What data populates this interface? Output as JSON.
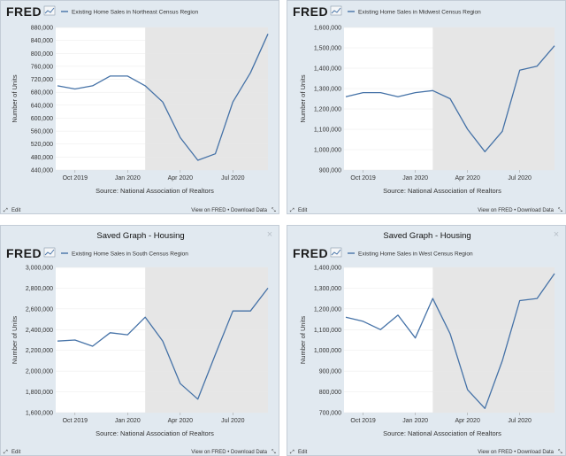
{
  "colors": {
    "line": "#4572a7",
    "panel_bg": "#e1e9f0",
    "plot_bg": "#ffffff",
    "recession": "#e6e6e6"
  },
  "logo_text": "FRED",
  "source": "Source: National Association of Realtors",
  "footer": {
    "edit": "Edit",
    "view": "View on FRED • Download Data"
  },
  "chart_data": [
    {
      "type": "line",
      "saved_title": "",
      "legend": "Existing Home Sales in Northeast Census Region",
      "ylabel": "Number of Units",
      "ylim": [
        440000,
        880000
      ],
      "yticks": [
        440000,
        480000,
        520000,
        560000,
        600000,
        640000,
        680000,
        720000,
        760000,
        800000,
        840000,
        880000
      ],
      "ytick_labels": [
        "440,000",
        "480,000",
        "520,000",
        "560,000",
        "600,000",
        "640,000",
        "680,000",
        "720,000",
        "760,000",
        "800,000",
        "840,000",
        "880,000"
      ],
      "x": [
        "2019-09",
        "2019-10",
        "2019-11",
        "2019-12",
        "2020-01",
        "2020-02",
        "2020-03",
        "2020-04",
        "2020-05",
        "2020-06",
        "2020-07",
        "2020-08",
        "2020-09"
      ],
      "values": [
        700000,
        690000,
        700000,
        730000,
        730000,
        700000,
        650000,
        540000,
        470000,
        490000,
        650000,
        740000,
        860000
      ],
      "xticks": [
        "Oct 2019",
        "Jan 2020",
        "Apr 2020",
        "Jul 2020"
      ],
      "shaded_from": "2020-02"
    },
    {
      "type": "line",
      "saved_title": "",
      "legend": "Existing Home Sales in Midwest Census Region",
      "ylabel": "Number of Units",
      "ylim": [
        900000,
        1600000
      ],
      "yticks": [
        900000,
        1000000,
        1100000,
        1200000,
        1300000,
        1400000,
        1500000,
        1600000
      ],
      "ytick_labels": [
        "900,000",
        "1,000,000",
        "1,100,000",
        "1,200,000",
        "1,300,000",
        "1,400,000",
        "1,500,000",
        "1,600,000"
      ],
      "x": [
        "2019-09",
        "2019-10",
        "2019-11",
        "2019-12",
        "2020-01",
        "2020-02",
        "2020-03",
        "2020-04",
        "2020-05",
        "2020-06",
        "2020-07",
        "2020-08",
        "2020-09"
      ],
      "values": [
        1260000,
        1280000,
        1280000,
        1260000,
        1280000,
        1290000,
        1250000,
        1100000,
        990000,
        1090000,
        1390000,
        1410000,
        1510000
      ],
      "xticks": [
        "Oct 2019",
        "Jan 2020",
        "Apr 2020",
        "Jul 2020"
      ],
      "shaded_from": "2020-02"
    },
    {
      "type": "line",
      "saved_title": "Saved Graph - Housing",
      "legend": "Existing Home Sales in South Census Region",
      "ylabel": "Number of Units",
      "ylim": [
        1600000,
        3000000
      ],
      "yticks": [
        1600000,
        1800000,
        2000000,
        2200000,
        2400000,
        2600000,
        2800000,
        3000000
      ],
      "ytick_labels": [
        "1,600,000",
        "1,800,000",
        "2,000,000",
        "2,200,000",
        "2,400,000",
        "2,600,000",
        "2,800,000",
        "3,000,000"
      ],
      "x": [
        "2019-09",
        "2019-10",
        "2019-11",
        "2019-12",
        "2020-01",
        "2020-02",
        "2020-03",
        "2020-04",
        "2020-05",
        "2020-06",
        "2020-07",
        "2020-08",
        "2020-09"
      ],
      "values": [
        2290000,
        2300000,
        2240000,
        2370000,
        2350000,
        2520000,
        2290000,
        1880000,
        1730000,
        2160000,
        2580000,
        2580000,
        2800000
      ],
      "xticks": [
        "Oct 2019",
        "Jan 2020",
        "Apr 2020",
        "Jul 2020"
      ],
      "shaded_from": "2020-02"
    },
    {
      "type": "line",
      "saved_title": "Saved Graph - Housing",
      "legend": "Existing Home Sales in West Census Region",
      "ylabel": "Number of Units",
      "ylim": [
        700000,
        1400000
      ],
      "yticks": [
        700000,
        800000,
        900000,
        1000000,
        1100000,
        1200000,
        1300000,
        1400000
      ],
      "ytick_labels": [
        "700,000",
        "800,000",
        "900,000",
        "1,000,000",
        "1,100,000",
        "1,200,000",
        "1,300,000",
        "1,400,000"
      ],
      "x": [
        "2019-09",
        "2019-10",
        "2019-11",
        "2019-12",
        "2020-01",
        "2020-02",
        "2020-03",
        "2020-04",
        "2020-05",
        "2020-06",
        "2020-07",
        "2020-08",
        "2020-09"
      ],
      "values": [
        1160000,
        1140000,
        1100000,
        1170000,
        1060000,
        1250000,
        1080000,
        810000,
        720000,
        950000,
        1240000,
        1250000,
        1370000
      ],
      "xticks": [
        "Oct 2019",
        "Jan 2020",
        "Apr 2020",
        "Jul 2020"
      ],
      "shaded_from": "2020-02"
    }
  ]
}
